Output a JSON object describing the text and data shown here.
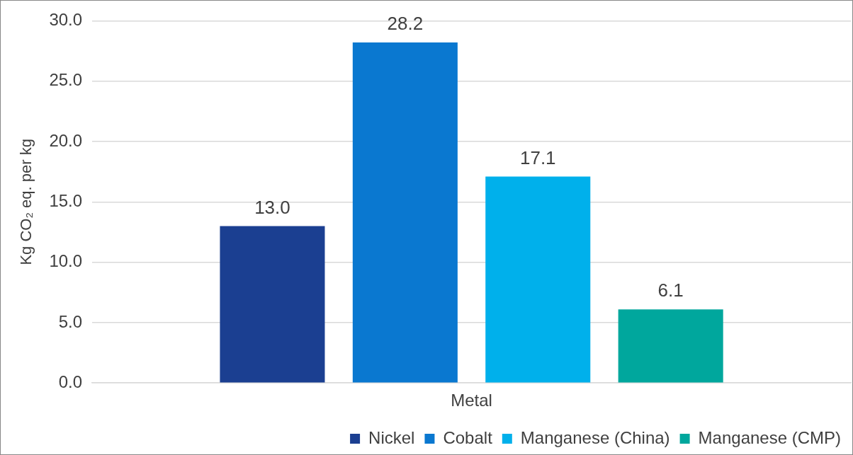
{
  "chart_data": {
    "type": "bar",
    "ylabel": "Kg CO₂ eq. per kg",
    "categories": [
      "Metal"
    ],
    "series": [
      {
        "name": "Nickel",
        "color": "#1b3f91",
        "values": [
          13.0
        ],
        "value_labels": [
          "13.0"
        ]
      },
      {
        "name": "Cobalt",
        "color": "#0a78d0",
        "values": [
          28.2
        ],
        "value_labels": [
          "28.2"
        ]
      },
      {
        "name": "Manganese (China)",
        "color": "#00b0eb",
        "values": [
          17.1
        ],
        "value_labels": [
          "17.1"
        ]
      },
      {
        "name": "Manganese (CMP)",
        "color": "#00a79d",
        "values": [
          6.1
        ],
        "value_labels": [
          "6.1"
        ]
      }
    ],
    "ylim": [
      0,
      30
    ],
    "yticks": [
      {
        "value": 0,
        "label": "0.0"
      },
      {
        "value": 5,
        "label": "5.0"
      },
      {
        "value": 10,
        "label": "10.0"
      },
      {
        "value": 15,
        "label": "15.0"
      },
      {
        "value": 20,
        "label": "20.0"
      },
      {
        "value": 25,
        "label": "25.0"
      },
      {
        "value": 30,
        "label": "30.0"
      }
    ],
    "grid": "y",
    "legend": "bottom"
  }
}
